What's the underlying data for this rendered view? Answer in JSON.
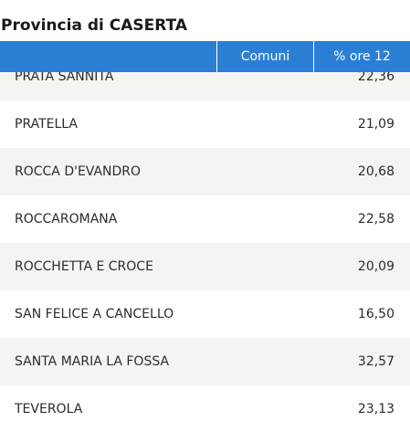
{
  "title": "Provincia di CASERTA",
  "table": {
    "headers": {
      "comuni": "Comuni",
      "pct": "% ore 12"
    },
    "rows": [
      {
        "name": "PRATA SANNITA",
        "pct": "22,36"
      },
      {
        "name": "PRATELLA",
        "pct": "21,09"
      },
      {
        "name": "ROCCA D'EVANDRO",
        "pct": "20,68"
      },
      {
        "name": "ROCCAROMANA",
        "pct": "22,58"
      },
      {
        "name": "ROCCHETTA E CROCE",
        "pct": "20,09"
      },
      {
        "name": "SAN FELICE A CANCELLO",
        "pct": "16,50"
      },
      {
        "name": "SANTA MARIA LA FOSSA",
        "pct": "32,57"
      },
      {
        "name": "TEVEROLA",
        "pct": "23,13"
      }
    ]
  }
}
